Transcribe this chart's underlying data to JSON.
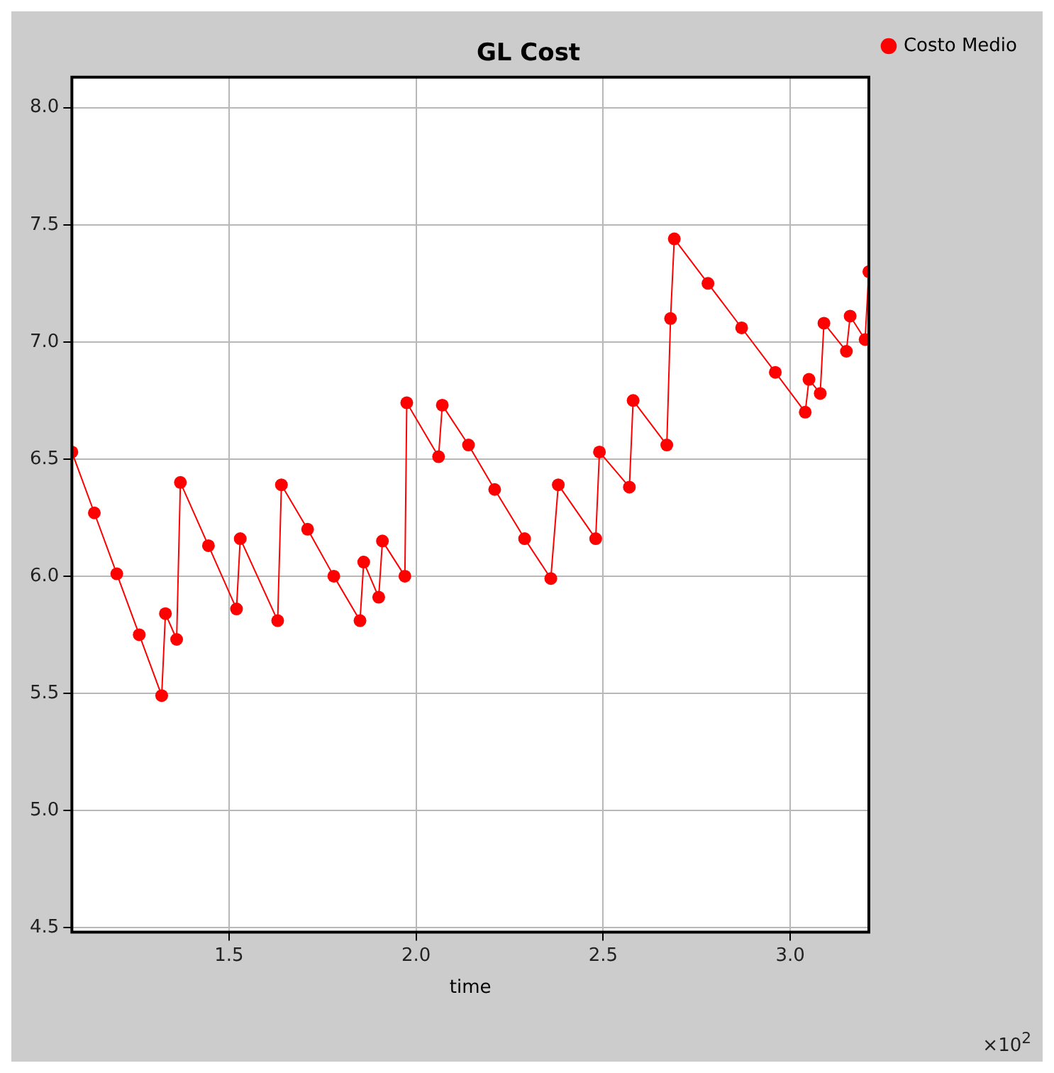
{
  "chart_data": {
    "type": "line",
    "title": "GL Cost",
    "xlabel": "time",
    "annotations": [
      "×10$^{2}$"
    ],
    "x": [
      1.08,
      1.14,
      1.2,
      1.26,
      1.32,
      1.33,
      1.36,
      1.37,
      1.445,
      1.52,
      1.53,
      1.63,
      1.64,
      1.71,
      1.78,
      1.85,
      1.86,
      1.9,
      1.91,
      1.97,
      1.975,
      2.06,
      2.07,
      2.14,
      2.21,
      2.29,
      2.36,
      2.38,
      2.48,
      2.49,
      2.57,
      2.58,
      2.67,
      2.68,
      2.69,
      2.78,
      2.87,
      2.96,
      3.04,
      3.05,
      3.08,
      3.09,
      3.15,
      3.16,
      3.2,
      3.21
    ],
    "series": [
      {
        "name": "Costo Medio",
        "color": "#ff0000",
        "values": [
          6.53,
          6.27,
          6.01,
          5.75,
          5.49,
          5.84,
          5.73,
          6.4,
          6.13,
          5.86,
          6.16,
          5.81,
          6.39,
          6.2,
          6.0,
          5.81,
          6.06,
          5.91,
          6.15,
          6.0,
          6.74,
          6.51,
          6.73,
          6.56,
          6.37,
          6.16,
          5.99,
          6.39,
          6.16,
          6.53,
          6.38,
          6.75,
          6.56,
          7.1,
          7.44,
          7.25,
          7.06,
          6.87,
          6.7,
          6.84,
          6.78,
          7.08,
          6.96,
          7.11,
          7.01,
          7.3
        ]
      }
    ],
    "xlim": [
      1.08,
      3.21
    ],
    "ylim": [
      4.48,
      8.13
    ],
    "xticks": [
      1.5,
      {
        "value": 2,
        "label": "2.0"
      },
      2.5,
      {
        "value": 3,
        "label": "3.0"
      }
    ],
    "yticks": [
      4.5,
      {
        "value": 5,
        "label": "5.0"
      },
      5.5,
      {
        "value": 6,
        "label": "6.0"
      },
      6.5,
      {
        "value": 7,
        "label": "7.0"
      },
      7.5,
      {
        "value": 8,
        "label": "8.0"
      }
    ],
    "grid": true,
    "legend": "top right",
    "marker": "circle",
    "line_style": "solid"
  }
}
